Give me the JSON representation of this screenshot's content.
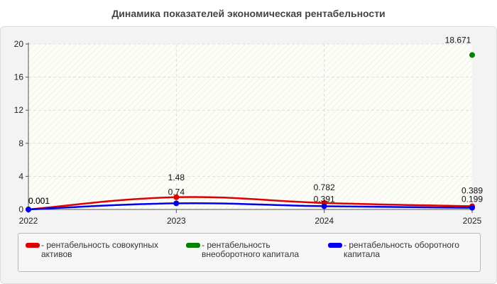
{
  "title": "Динамика показателей экономическая рентабельности",
  "chart_data": {
    "type": "line",
    "x": [
      "2022",
      "2023",
      "2024",
      "2025"
    ],
    "ylim": [
      0,
      20
    ],
    "yticks": [
      0,
      4,
      8,
      12,
      16,
      20
    ],
    "grid": true,
    "legend_position": "bottom",
    "series": [
      {
        "name": "- рентабельность совокупных активов",
        "color": "#e00000",
        "values": [
          0.001,
          1.48,
          0.782,
          0.389
        ],
        "labels": [
          "0.001",
          "1.48",
          "0.782",
          "0.389"
        ]
      },
      {
        "name": "- рентабельность внеоборотного капитала",
        "color": "#008000",
        "values": [
          null,
          null,
          null,
          18.671
        ],
        "labels": [
          null,
          null,
          null,
          "18.671"
        ]
      },
      {
        "name": "- рентабельность оборотного капитала",
        "color": "#0000ee",
        "values": [
          0.001,
          0.74,
          0.391,
          0.199
        ],
        "labels": [
          "0.001",
          "0.74",
          "0.391",
          "0.199"
        ]
      }
    ]
  }
}
